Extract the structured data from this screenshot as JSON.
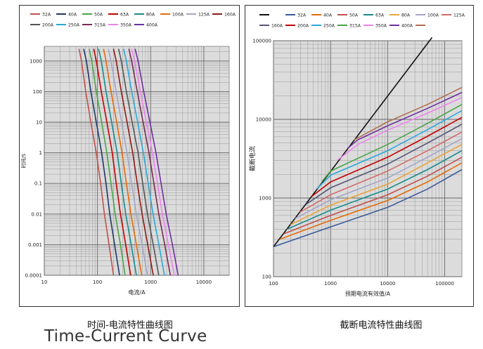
{
  "captions": {
    "left": "时间-电流特性曲线图",
    "right": "截断电流特性曲线图",
    "english": "Time-Current Curve"
  },
  "chart_data": [
    {
      "type": "line",
      "title": "",
      "xlabel": "电流/A",
      "ylabel": "时间/S",
      "x_scale": "log",
      "y_scale": "log",
      "xlim": [
        10,
        30000
      ],
      "ylim": [
        0.0001,
        3000
      ],
      "x_ticks": [
        {
          "value": 10,
          "label": "10"
        },
        {
          "value": 100,
          "label": "100"
        },
        {
          "value": 1000,
          "label": "1000"
        },
        {
          "value": 10000,
          "label": "10000"
        }
      ],
      "y_ticks": [
        {
          "value": 1000,
          "label": "1000"
        },
        {
          "value": 100,
          "label": "100"
        },
        {
          "value": 10,
          "label": "10"
        },
        {
          "value": 1,
          "label": "1"
        },
        {
          "value": 0.1,
          "label": "0.1"
        },
        {
          "value": 0.01,
          "label": "0.01"
        },
        {
          "value": 0.001,
          "label": "0.001"
        },
        {
          "value": 0.0001,
          "label": "0.0001"
        }
      ],
      "grid": true,
      "legend_position": "top",
      "series": [
        {
          "name": "32A",
          "color": "#c0504d",
          "points": [
            [
              45,
              2500
            ],
            [
              50,
              1000
            ],
            [
              60,
              100
            ],
            [
              75,
              10
            ],
            [
              95,
              1
            ],
            [
              115,
              0.1
            ],
            [
              135,
              0.01
            ],
            [
              165,
              0.001
            ],
            [
              200,
              0.0001
            ]
          ]
        },
        {
          "name": "40A",
          "color": "#1f3864",
          "points": [
            [
              55,
              2500
            ],
            [
              62,
              1000
            ],
            [
              75,
              100
            ],
            [
              95,
              10
            ],
            [
              120,
              1
            ],
            [
              145,
              0.1
            ],
            [
              170,
              0.01
            ],
            [
              210,
              0.001
            ],
            [
              260,
              0.0001
            ]
          ]
        },
        {
          "name": "50A",
          "color": "#4aa34a",
          "points": [
            [
              70,
              2500
            ],
            [
              78,
              1000
            ],
            [
              95,
              100
            ],
            [
              120,
              10
            ],
            [
              150,
              1
            ],
            [
              180,
              0.1
            ],
            [
              215,
              0.01
            ],
            [
              270,
              0.001
            ],
            [
              330,
              0.0001
            ]
          ]
        },
        {
          "name": "63A",
          "color": "#c00000",
          "points": [
            [
              85,
              2500
            ],
            [
              95,
              1000
            ],
            [
              118,
              100
            ],
            [
              150,
              10
            ],
            [
              190,
              1
            ],
            [
              225,
              0.1
            ],
            [
              270,
              0.01
            ],
            [
              340,
              0.001
            ],
            [
              420,
              0.0001
            ]
          ]
        },
        {
          "name": "80A",
          "color": "#1a8a8a",
          "points": [
            [
              105,
              2500
            ],
            [
              118,
              1000
            ],
            [
              145,
              100
            ],
            [
              185,
              10
            ],
            [
              235,
              1
            ],
            [
              280,
              0.1
            ],
            [
              340,
              0.01
            ],
            [
              430,
              0.001
            ],
            [
              540,
              0.0001
            ]
          ]
        },
        {
          "name": "100A",
          "color": "#e26b0a",
          "points": [
            [
              130,
              2500
            ],
            [
              145,
              1000
            ],
            [
              180,
              100
            ],
            [
              230,
              10
            ],
            [
              290,
              1
            ],
            [
              350,
              0.1
            ],
            [
              425,
              0.01
            ],
            [
              540,
              0.001
            ],
            [
              680,
              0.0001
            ]
          ]
        },
        {
          "name": "125A",
          "color": "#a5a5c8",
          "points": [
            [
              160,
              2500
            ],
            [
              180,
              1000
            ],
            [
              225,
              100
            ],
            [
              285,
              10
            ],
            [
              360,
              1
            ],
            [
              440,
              0.1
            ],
            [
              540,
              0.01
            ],
            [
              690,
              0.001
            ],
            [
              870,
              0.0001
            ]
          ]
        },
        {
          "name": "160A",
          "color": "#8b1a1a",
          "points": [
            [
              200,
              2500
            ],
            [
              225,
              1000
            ],
            [
              280,
              100
            ],
            [
              360,
              10
            ],
            [
              460,
              1
            ],
            [
              560,
              0.1
            ],
            [
              690,
              0.01
            ],
            [
              880,
              0.001
            ],
            [
              1120,
              0.0001
            ]
          ]
        },
        {
          "name": "200A",
          "color": "#555555",
          "points": [
            [
              250,
              2500
            ],
            [
              280,
              1000
            ],
            [
              350,
              100
            ],
            [
              450,
              10
            ],
            [
              580,
              1
            ],
            [
              710,
              0.1
            ],
            [
              870,
              0.01
            ],
            [
              1120,
              0.001
            ],
            [
              1420,
              0.0001
            ]
          ]
        },
        {
          "name": "250A",
          "color": "#2aa7d8",
          "points": [
            [
              310,
              2500
            ],
            [
              350,
              1000
            ],
            [
              440,
              100
            ],
            [
              570,
              10
            ],
            [
              730,
              1
            ],
            [
              900,
              0.1
            ],
            [
              1110,
              0.01
            ],
            [
              1430,
              0.001
            ],
            [
              1820,
              0.0001
            ]
          ]
        },
        {
          "name": "315A",
          "color": "#7a2a55",
          "points": [
            [
              390,
              2500
            ],
            [
              440,
              1000
            ],
            [
              560,
              100
            ],
            [
              720,
              10
            ],
            [
              930,
              1
            ],
            [
              1150,
              0.1
            ],
            [
              1420,
              0.01
            ],
            [
              1840,
              0.001
            ],
            [
              2350,
              0.0001
            ]
          ]
        },
        {
          "name": "350A",
          "color": "#ee82ee",
          "points": [
            [
              440,
              2500
            ],
            [
              500,
              1000
            ],
            [
              640,
              100
            ],
            [
              830,
              10
            ],
            [
              1080,
              1
            ],
            [
              1340,
              0.1
            ],
            [
              1660,
              0.01
            ],
            [
              2160,
              0.001
            ],
            [
              2780,
              0.0001
            ]
          ]
        },
        {
          "name": "400A",
          "color": "#7030a0",
          "points": [
            [
              510,
              2500
            ],
            [
              580,
              1000
            ],
            [
              740,
              100
            ],
            [
              970,
              10
            ],
            [
              1260,
              1
            ],
            [
              1570,
              0.1
            ],
            [
              1960,
              0.01
            ],
            [
              2560,
              0.001
            ],
            [
              3300,
              0.0001
            ]
          ]
        }
      ]
    },
    {
      "type": "line",
      "title": "",
      "xlabel": "预期电流有效值/A",
      "ylabel": "截断电流",
      "x_scale": "log",
      "y_scale": "log",
      "xlim": [
        100,
        200000
      ],
      "ylim": [
        100,
        100000
      ],
      "x_ticks": [
        {
          "value": 100,
          "label": "100"
        },
        {
          "value": 1000,
          "label": "1000"
        },
        {
          "value": 10000,
          "label": "10000"
        },
        {
          "value": 100000,
          "label": "100000"
        }
      ],
      "y_ticks": [
        {
          "value": 100000,
          "label": "100000"
        },
        {
          "value": 10000,
          "label": "10000"
        },
        {
          "value": 1000,
          "label": "1000"
        },
        {
          "value": 100,
          "label": "100"
        }
      ],
      "grid": true,
      "legend_position": "top",
      "series": [
        {
          "name": "",
          "color": "#111111",
          "points": [
            [
              100,
              240
            ],
            [
              60000,
              110000
            ]
          ]
        },
        {
          "name": "32A",
          "color": "#3a5a9a",
          "points": [
            [
              100,
              240
            ],
            [
              1000,
              430
            ],
            [
              10000,
              760
            ],
            [
              50000,
              1300
            ],
            [
              200000,
              2300
            ]
          ]
        },
        {
          "name": "40A",
          "color": "#e26b0a",
          "points": [
            [
              130,
              300
            ],
            [
              1000,
              520
            ],
            [
              10000,
              930
            ],
            [
              50000,
              1600
            ],
            [
              200000,
              2800
            ]
          ]
        },
        {
          "name": "50A",
          "color": "#c0504d",
          "points": [
            [
              150,
              350
            ],
            [
              1000,
              600
            ],
            [
              10000,
              1100
            ],
            [
              50000,
              1900
            ],
            [
              200000,
              3300
            ]
          ]
        },
        {
          "name": "63A",
          "color": "#1a8a8a",
          "points": [
            [
              170,
              400
            ],
            [
              1000,
              700
            ],
            [
              10000,
              1300
            ],
            [
              50000,
              2300
            ],
            [
              200000,
              4000
            ]
          ]
        },
        {
          "name": "80A",
          "color": "#e8a33a",
          "points": [
            [
              200,
              460
            ],
            [
              1000,
              810
            ],
            [
              10000,
              1500
            ],
            [
              50000,
              2800
            ],
            [
              200000,
              4800
            ]
          ]
        },
        {
          "name": "100A",
          "color": "#a5a5c8",
          "points": [
            [
              240,
              550
            ],
            [
              1000,
              950
            ],
            [
              10000,
              1800
            ],
            [
              50000,
              3300
            ],
            [
              200000,
              5700
            ]
          ]
        },
        {
          "name": "125A",
          "color": "#d36b6b",
          "points": [
            [
              290,
              660
            ],
            [
              1000,
              1100
            ],
            [
              10000,
              2200
            ],
            [
              50000,
              4000
            ],
            [
              200000,
              6900
            ]
          ]
        },
        {
          "name": "160A",
          "color": "#555577",
          "points": [
            [
              370,
              830
            ],
            [
              1000,
              1350
            ],
            [
              10000,
              2700
            ],
            [
              50000,
              5000
            ],
            [
              200000,
              8700
            ]
          ]
        },
        {
          "name": "200A",
          "color": "#c00000",
          "points": [
            [
              460,
              1040
            ],
            [
              1000,
              1600
            ],
            [
              10000,
              3300
            ],
            [
              50000,
              6100
            ],
            [
              200000,
              10600
            ]
          ]
        },
        {
          "name": "250A",
          "color": "#2aa7d8",
          "points": [
            [
              570,
              1300
            ],
            [
              1000,
              1950
            ],
            [
              10000,
              4000
            ],
            [
              50000,
              7400
            ],
            [
              200000,
              12900
            ]
          ]
        },
        {
          "name": "315A",
          "color": "#4aa34a",
          "points": [
            [
              720,
              1650
            ],
            [
              1000,
              2200
            ],
            [
              10000,
              4800
            ],
            [
              50000,
              8900
            ],
            [
              200000,
              15500
            ]
          ]
        },
        {
          "name": "350A",
          "color": "#ee82ee",
          "points": [
            [
              1300,
              3000
            ],
            [
              3000,
              4800
            ],
            [
              10000,
              7300
            ],
            [
              50000,
              12000
            ],
            [
              200000,
              19000
            ]
          ]
        },
        {
          "name": "400A",
          "color": "#7030a0",
          "points": [
            [
              2000,
              4300
            ],
            [
              3000,
              5500
            ],
            [
              10000,
              8300
            ],
            [
              50000,
              13800
            ],
            [
              200000,
              22000
            ]
          ]
        },
        {
          "name": "",
          "color": "#b07050",
          "points": [
            [
              2600,
              5500
            ],
            [
              10000,
              9300
            ],
            [
              50000,
              15500
            ],
            [
              200000,
              25500
            ]
          ]
        }
      ]
    }
  ]
}
